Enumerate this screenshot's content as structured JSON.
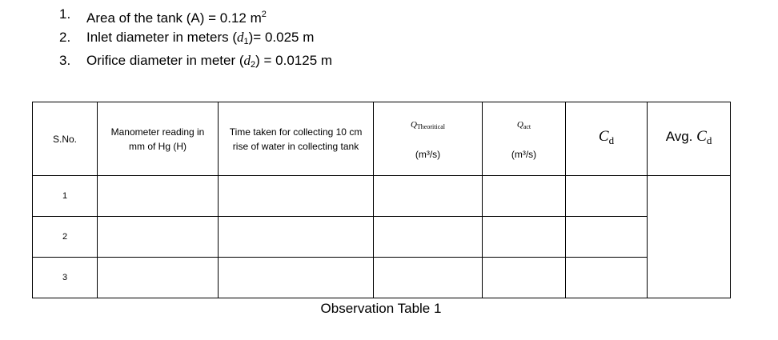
{
  "parameters": [
    {
      "num": "1.",
      "text": "Area of the tank (A) = 0.12 m",
      "sup": "2",
      "tail": ""
    },
    {
      "num": "2.",
      "text": "Inlet diameter in meters (",
      "var": "d",
      "sub": "1",
      "tail": ")= 0.025 m"
    },
    {
      "num": "3.",
      "text": "Orifice diameter in meter (",
      "var": "d",
      "sub": "2",
      "tail": ") = 0.0125 m"
    }
  ],
  "table": {
    "headers": {
      "sno": "S.No.",
      "manometer": "Manometer reading in mm of Hg (H)",
      "time": "Time taken for collecting 10 cm rise of water in collecting tank",
      "q_theoretical_var": "Q",
      "q_theoretical_sub": "Theoritical",
      "q_theoretical_unit": "(m³/s)",
      "q_act_var": "Q",
      "q_act_sub": "act",
      "q_act_unit": "(m³/s)",
      "cd_var": "C",
      "cd_sub": "d",
      "avg_prefix": "Avg. ",
      "avg_var": "C",
      "avg_sub": "d"
    },
    "rows": [
      "1",
      "2",
      "3"
    ]
  },
  "caption": "Observation Table 1"
}
